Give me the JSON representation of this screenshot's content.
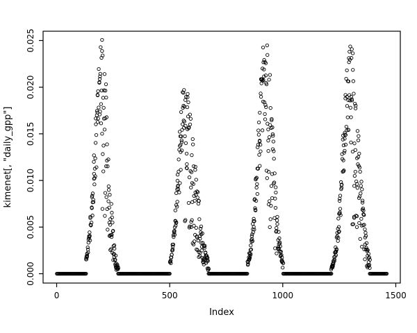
{
  "figure": {
    "background": "#ffffff",
    "foreground": "#000000"
  },
  "chart_data": {
    "type": "scatter",
    "title": "",
    "xlabel": "Index",
    "ylabel": "kimenet[, \"daily_gpp\"]",
    "xlim": [
      -60,
      1520
    ],
    "ylim": [
      -0.001,
      0.026
    ],
    "x_ticks": [
      0,
      500,
      1000,
      1500
    ],
    "x_tick_labels": [
      "0",
      "500",
      "1000",
      "1500"
    ],
    "y_ticks": [
      0,
      0.005,
      0.01,
      0.015,
      0.02,
      0.025
    ],
    "y_tick_labels": [
      "0.000",
      "0.005",
      "0.010",
      "0.015",
      "0.020",
      "0.025"
    ],
    "grid": false,
    "legend": "none",
    "marker": {
      "shape": "open-circle",
      "radius": 2.2,
      "color": "#000000",
      "stroke_width": 0.9
    },
    "series_description": "Daily GPP vs. observation index: four seasonal growing-season peaks separated by dormant periods where values sit exactly at 0",
    "zero_runs": [
      [
        1,
        130
      ],
      [
        272,
        502
      ],
      [
        672,
        845
      ],
      [
        1002,
        1215
      ],
      [
        1385,
        1460
      ]
    ],
    "peaks": [
      {
        "start": 130,
        "center": 200,
        "end": 272,
        "amplitude": 0.0255,
        "rise_width": 30,
        "fall_width": 27
      },
      {
        "start": 502,
        "center": 565,
        "end": 672,
        "amplitude": 0.0205,
        "rise_width": 27,
        "fall_width": 46
      },
      {
        "start": 845,
        "center": 925,
        "end": 1002,
        "amplitude": 0.0255,
        "rise_width": 33,
        "fall_width": 31
      },
      {
        "start": 1215,
        "center": 1298,
        "end": 1385,
        "amplitude": 0.0245,
        "rise_width": 31,
        "fall_width": 37
      }
    ],
    "point_step": 2,
    "zero_step": 3,
    "seed": 42,
    "scatter_model": "y = amplitude * gaussian(x; center, side_width) * multiplicative noise; tighter scatter on the rising limb, wide downward scatter on the falling limb"
  }
}
